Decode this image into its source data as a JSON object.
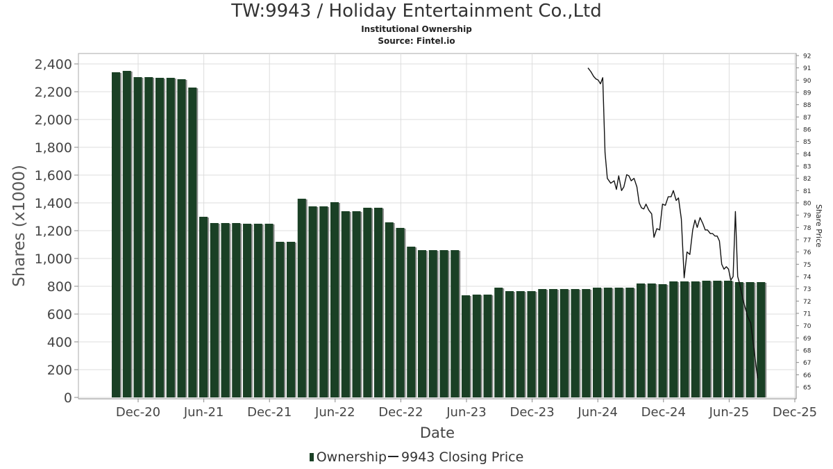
{
  "header": {
    "title": "TW:9943 / Holiday Entertainment Co.,Ltd",
    "subtitle": "Institutional Ownership",
    "source": "Source: Fintel.io"
  },
  "legend": {
    "ownership_label": "Ownership",
    "price_label": "9943 Closing Price"
  },
  "chart_data": {
    "type": "bar",
    "title": "TW:9943 / Holiday Entertainment Co.,Ltd",
    "xlabel": "Date",
    "ylabel": "Shares (x1000)",
    "y2label": "Share Price",
    "ylim": [
      0,
      2400
    ],
    "y2lim": [
      65,
      92
    ],
    "x_tick_labels": [
      "Dec-20",
      "Jun-21",
      "Dec-21",
      "Jun-22",
      "Dec-22",
      "Jun-23",
      "Dec-23",
      "Jun-24",
      "Dec-24",
      "Jun-25",
      "Dec-25"
    ],
    "y_ticks": [
      0,
      200,
      400,
      600,
      800,
      1000,
      1200,
      1400,
      1600,
      1800,
      2000,
      2200,
      2400
    ],
    "y_tick_labels": [
      "0",
      "200",
      "400",
      "600",
      "800",
      "1,000",
      "1,200",
      "1,400",
      "1,600",
      "1,800",
      "2,000",
      "2,200",
      "2,400"
    ],
    "y2_ticks": [
      65,
      66,
      67,
      68,
      69,
      70,
      71,
      72,
      73,
      74,
      75,
      76,
      77,
      78,
      79,
      80,
      81,
      82,
      83,
      84,
      85,
      86,
      87,
      88,
      89,
      90,
      91,
      92
    ],
    "grid": true,
    "legend_position": "bottom",
    "colors": {
      "bar": "#1a4025",
      "bar_shadow": "#8f8f8f",
      "line": "#111111",
      "grid": "#dddddd"
    },
    "series": [
      {
        "name": "Ownership",
        "type": "bar",
        "values": [
          2340,
          2350,
          2305,
          2305,
          2300,
          2300,
          2290,
          2230,
          1300,
          1255,
          1255,
          1255,
          1250,
          1250,
          1250,
          1120,
          1120,
          1430,
          1375,
          1375,
          1405,
          1340,
          1340,
          1365,
          1365,
          1260,
          1220,
          1085,
          1060,
          1060,
          1060,
          1060,
          735,
          740,
          740,
          790,
          765,
          765,
          765,
          780,
          780,
          780,
          780,
          780,
          790,
          790,
          790,
          790,
          820,
          820,
          815,
          835,
          835,
          835,
          840,
          840,
          840,
          830,
          830,
          830
        ]
      },
      {
        "name": "9943 Closing Price",
        "type": "line",
        "x": [
          0.0,
          0.5,
          1.0,
          1.4,
          1.8,
          2.2,
          2.6,
          3.0,
          3.4,
          4.0,
          4.6,
          5.0,
          5.4,
          5.9,
          6.3,
          6.8,
          7.2,
          7.6,
          8.1,
          8.6,
          9.0,
          9.4,
          9.8,
          10.2,
          10.7,
          11.2,
          11.6,
          12.1,
          12.6,
          13.1,
          13.6,
          14.1,
          14.6,
          15.0,
          15.5,
          15.9,
          16.4,
          16.9,
          17.4,
          17.9,
          18.4,
          18.8,
          19.2,
          19.7,
          20.2,
          20.6,
          21.0,
          21.5,
          21.9,
          22.3,
          22.7,
          23.1,
          23.5,
          23.9,
          24.3,
          24.7,
          25.1,
          25.5,
          25.9,
          26.3,
          26.6,
          27.3,
          28.0,
          28.6,
          29.2,
          29.8
        ],
        "values": [
          91.0,
          90.7,
          90.3,
          90.1,
          90.0,
          89.7,
          90.2,
          84.1,
          82.0,
          81.6,
          81.8,
          81.1,
          82.2,
          81.0,
          81.3,
          82.3,
          82.2,
          81.8,
          82.0,
          81.3,
          80.0,
          79.6,
          79.5,
          79.9,
          79.4,
          79.1,
          77.2,
          77.9,
          77.8,
          79.9,
          79.8,
          80.5,
          80.5,
          81.0,
          80.2,
          80.4,
          78.7,
          73.9,
          76.0,
          75.8,
          77.8,
          78.6,
          78.0,
          78.8,
          78.3,
          77.8,
          77.8,
          77.5,
          77.5,
          77.3,
          77.3,
          76.9,
          75.0,
          74.6,
          74.8,
          74.6,
          73.7,
          74.0,
          79.3,
          74.0,
          73.5,
          72.0,
          70.8,
          70.2,
          68.0,
          65.7
        ]
      }
    ]
  }
}
